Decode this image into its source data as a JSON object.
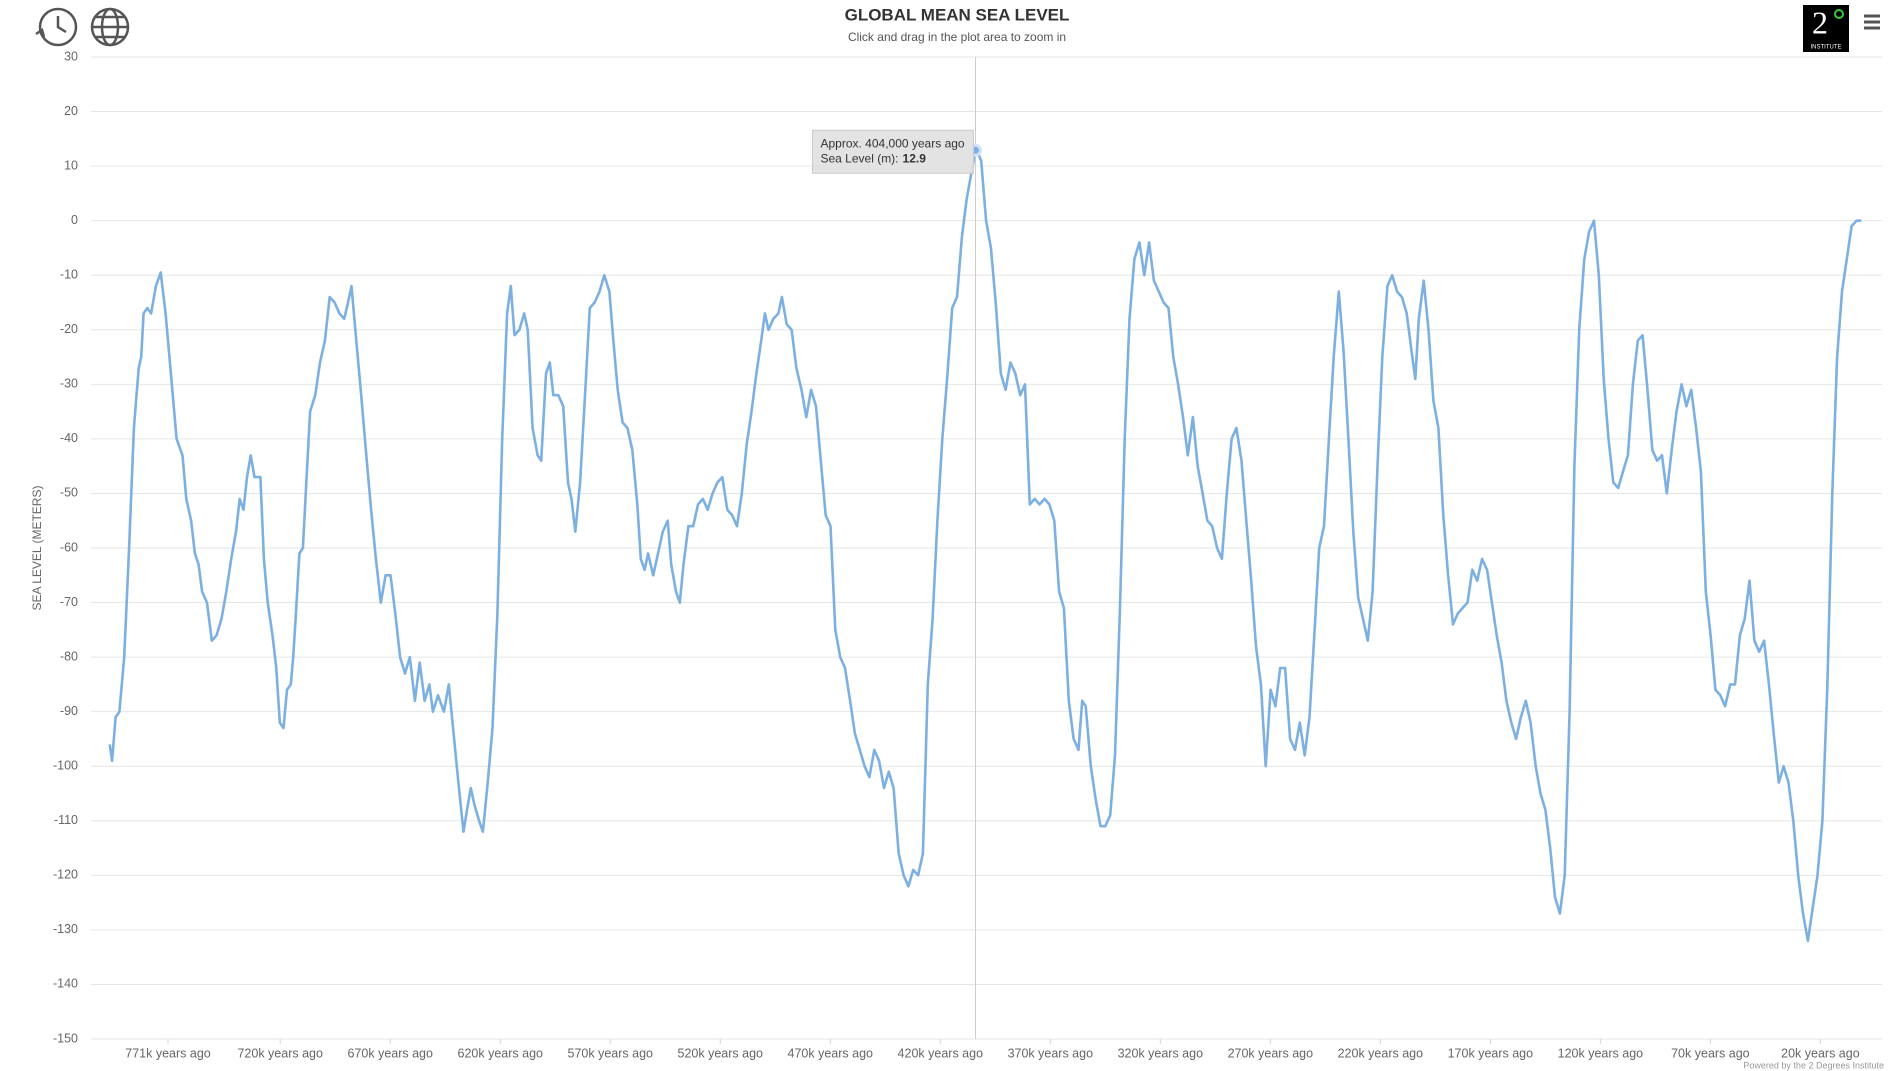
{
  "chart_data": {
    "type": "line",
    "title": "GLOBAL MEAN SEA LEVEL",
    "subtitle": "Click and drag in the plot area to zoom in",
    "y_label": "SEA LEVEL (METERS)",
    "credit": "Powered by the 2 Degrees Institute",
    "logo": {
      "big": "2",
      "small": "INSTITUTE"
    },
    "tooltip": {
      "title": "Approx. 404,000 years ago",
      "label": "Sea Level (m):"
    },
    "xlim": [
      806,
      -8
    ],
    "ylim": [
      -150,
      30
    ],
    "yticks": [
      -150,
      -140,
      -130,
      -120,
      -110,
      -100,
      -90,
      -80,
      -70,
      -60,
      -50,
      -40,
      -30,
      -20,
      -10,
      0,
      10,
      20,
      30
    ],
    "xticks": [
      {
        "value": 771,
        "label": "771k years ago"
      },
      {
        "value": 720,
        "label": "720k years ago"
      },
      {
        "value": 670,
        "label": "670k years ago"
      },
      {
        "value": 620,
        "label": "620k years ago"
      },
      {
        "value": 570,
        "label": "570k years ago"
      },
      {
        "value": 520,
        "label": "520k years ago"
      },
      {
        "value": 470,
        "label": "470k years ago"
      },
      {
        "value": 420,
        "label": "420k years ago"
      },
      {
        "value": 370,
        "label": "370k years ago"
      },
      {
        "value": 320,
        "label": "320k years ago"
      },
      {
        "value": 270,
        "label": "270k years ago"
      },
      {
        "value": 220,
        "label": "220k years ago"
      },
      {
        "value": 170,
        "label": "170k years ago"
      },
      {
        "value": 120,
        "label": "120k years ago"
      },
      {
        "value": 70,
        "label": "70k years ago"
      },
      {
        "value": 20,
        "label": "20k years ago"
      }
    ],
    "grid": true,
    "x": [
      797.5,
      796.4,
      794.8,
      793.1,
      790.9,
      788.7,
      786.5,
      784.3,
      783.2,
      782.1,
      780.4,
      778.7,
      776.5,
      774.3,
      772.1,
      769.9,
      767.1,
      764.4,
      762.7,
      760.5,
      758.8,
      757.1,
      755.5,
      753.3,
      751.1,
      748.9,
      746.7,
      744.5,
      742.3,
      740.1,
      738.4,
      736.7,
      735.1,
      733.4,
      731.7,
      729.0,
      727.4,
      725.7,
      723.5,
      721.8,
      720.2,
      718.5,
      716.9,
      715.2,
      714.1,
      713.0,
      711.3,
      709.7,
      708.0,
      706.4,
      704.1,
      701.9,
      699.7,
      697.5,
      695.3,
      693.1,
      690.9,
      689.2,
      687.6,
      685.4,
      683.2,
      680.9,
      678.7,
      676.5,
      674.3,
      672.1,
      669.9,
      667.7,
      665.5,
      663.3,
      661.1,
      658.8,
      656.6,
      654.4,
      652.2,
      650.6,
      648.3,
      645.6,
      643.4,
      641.2,
      639.0,
      636.7,
      635.1,
      633.4,
      631.8,
      629.6,
      627.9,
      625.7,
      623.5,
      621.3,
      619.1,
      616.9,
      615.2,
      613.5,
      611.3,
      609.1,
      607.5,
      605.3,
      603.0,
      601.4,
      599.2,
      597.5,
      595.9,
      593.6,
      591.4,
      589.2,
      587.6,
      585.9,
      583.7,
      581.5,
      579.3,
      577.1,
      574.9,
      572.7,
      570.4,
      568.8,
      566.6,
      564.4,
      562.2,
      560.0,
      557.7,
      556.1,
      554.4,
      552.8,
      550.5,
      548.3,
      546.1,
      543.9,
      542.3,
      540.1,
      538.4,
      536.7,
      534.5,
      532.3,
      530.1,
      527.9,
      525.7,
      523.5,
      521.3,
      519.1,
      516.8,
      514.6,
      512.4,
      510.2,
      508.0,
      505.8,
      503.6,
      501.4,
      499.7,
      498.1,
      495.9,
      493.6,
      492.0,
      489.8,
      487.6,
      485.4,
      483.1,
      480.9,
      478.7,
      476.5,
      474.3,
      472.1,
      469.9,
      467.7,
      465.5,
      463.3,
      461.0,
      458.8,
      456.6,
      454.4,
      452.2,
      450.0,
      447.8,
      445.6,
      443.4,
      441.2,
      438.9,
      436.7,
      434.5,
      432.3,
      430.1,
      427.9,
      425.7,
      423.5,
      421.3,
      419.1,
      416.9,
      414.6,
      412.4,
      410.2,
      408.0,
      404,
      402.5,
      401.4,
      399.2,
      397.0,
      394.8,
      392.5,
      390.3,
      388.1,
      385.9,
      383.7,
      381.5,
      379.3,
      377.1,
      374.9,
      372.6,
      370.4,
      368.2,
      366.0,
      363.8,
      361.6,
      359.4,
      357.2,
      355.5,
      353.9,
      351.6,
      349.4,
      347.2,
      345.0,
      342.8,
      340.6,
      338.4,
      336.2,
      334.0,
      331.8,
      329.5,
      327.3,
      325.1,
      322.9,
      320.7,
      318.5,
      316.3,
      314.1,
      311.9,
      309.7,
      307.5,
      305.2,
      303.0,
      300.8,
      298.6,
      296.4,
      294.2,
      292.0,
      289.8,
      287.6,
      285.4,
      283.1,
      280.9,
      278.7,
      276.5,
      274.3,
      272.1,
      269.9,
      267.7,
      265.5,
      263.3,
      261.0,
      258.8,
      256.6,
      254.4,
      252.2,
      250.0,
      247.8,
      245.6,
      243.4,
      241.2,
      238.9,
      236.7,
      234.5,
      232.3,
      230.1,
      227.9,
      225.7,
      223.5,
      221.3,
      219.1,
      216.8,
      214.6,
      212.4,
      210.2,
      208.0,
      205.8,
      204.1,
      202.5,
      200.3,
      198.1,
      195.9,
      193.6,
      191.4,
      189.2,
      187.0,
      184.8,
      182.6,
      180.4,
      178.2,
      176.0,
      173.8,
      171.5,
      169.3,
      167.1,
      164.9,
      162.7,
      160.5,
      158.3,
      156.1,
      153.9,
      151.7,
      149.4,
      147.2,
      145.0,
      142.8,
      140.6,
      138.4,
      136.2,
      134.0,
      131.8,
      129.6,
      127.3,
      125.1,
      122.9,
      120.7,
      118.5,
      116.3,
      114.1,
      111.9,
      109.7,
      107.5,
      105.2,
      103.0,
      100.8,
      98.6,
      96.4,
      94.2,
      92.0,
      89.8,
      87.6,
      85.4,
      83.1,
      80.9,
      78.7,
      76.5,
      74.3,
      72.1,
      69.9,
      67.7,
      65.5,
      63.3,
      61.0,
      58.8,
      56.6,
      54.4,
      52.2,
      50.0,
      47.8,
      45.6,
      43.4,
      41.2,
      38.9,
      36.7,
      34.5,
      32.3,
      30.1,
      27.9,
      25.7,
      23.5,
      21.3,
      19.1,
      16.8,
      14.6,
      12.4,
      10.2,
      8.0,
      5.8,
      3.6,
      1.4
    ],
    "series": [
      {
        "name": "Sea Level (m)",
        "color": "#7cb0e2",
        "values": [
          -96,
          -99,
          -91,
          -90,
          -80,
          -60,
          -38,
          -27,
          -25,
          -17,
          -16,
          -17,
          -12,
          -9.5,
          -17,
          -27,
          -40,
          -43,
          -51,
          -55,
          -61,
          -63,
          -68,
          -70,
          -77,
          -76,
          -73,
          -68,
          -62,
          -57,
          -51,
          -53,
          -47,
          -43,
          -47,
          -47,
          -62,
          -70,
          -76,
          -82,
          -92,
          -93,
          -86,
          -85,
          -80,
          -73,
          -61,
          -60,
          -47,
          -35,
          -32,
          -26,
          -22,
          -14,
          -15,
          -17,
          -18,
          -15,
          -12,
          -22,
          -32,
          -43,
          -53,
          -62,
          -70,
          -65,
          -65,
          -72,
          -80,
          -83,
          -80,
          -88,
          -81,
          -88,
          -85,
          -90,
          -87,
          -90,
          -85,
          -94,
          -103,
          -112,
          -108,
          -104,
          -107,
          -110,
          -112,
          -103,
          -93,
          -72,
          -40,
          -17,
          -12,
          -21,
          -20,
          -17,
          -20,
          -38,
          -43,
          -44,
          -28,
          -26,
          -32,
          -32,
          -34,
          -48,
          -51,
          -57,
          -48,
          -32,
          -16,
          -15,
          -13,
          -10,
          -13,
          -21,
          -31,
          -37,
          -38,
          -42,
          -52,
          -62,
          -64,
          -61,
          -65,
          -61,
          -57,
          -55,
          -63,
          -68,
          -70,
          -63,
          -56,
          -56,
          -52,
          -51,
          -53,
          -50,
          -48,
          -47,
          -53,
          -54,
          -56,
          -50,
          -41,
          -35,
          -28,
          -22,
          -17,
          -20,
          -18,
          -17,
          -14,
          -19,
          -20,
          -27,
          -31,
          -36,
          -31,
          -34,
          -44,
          -54,
          -56,
          -75,
          -80,
          -82,
          -88,
          -94,
          -97,
          -100,
          -102,
          -97,
          -99,
          -104,
          -101,
          -104,
          -116,
          -120,
          -122,
          -119,
          -120,
          -116,
          -85,
          -73,
          -55,
          -40,
          -29,
          -16,
          -14,
          -3,
          4,
          12.9,
          12,
          11,
          0,
          -5,
          -15,
          -28,
          -31,
          -26,
          -28,
          -32,
          -30,
          -52,
          -51,
          -52,
          -51,
          -52,
          -55,
          -68,
          -71,
          -88,
          -95,
          -97,
          -88,
          -89,
          -100,
          -106,
          -111,
          -111,
          -109,
          -98,
          -72,
          -40,
          -18,
          -7,
          -4,
          -10,
          -4,
          -11,
          -13,
          -15,
          -16,
          -25,
          -30,
          -36,
          -43,
          -36,
          -45,
          -50,
          -55,
          -56,
          -60,
          -62,
          -50,
          -40,
          -38,
          -44,
          -55,
          -66,
          -78,
          -85,
          -100,
          -86,
          -89,
          -82,
          -82,
          -95,
          -97,
          -92,
          -98,
          -91,
          -76,
          -60,
          -56,
          -40,
          -25,
          -13,
          -24,
          -40,
          -57,
          -69,
          -73,
          -77,
          -68,
          -45,
          -25,
          -12,
          -10,
          -13,
          -14,
          -17,
          -24,
          -29,
          -18,
          -11,
          -20,
          -33,
          -38,
          -54,
          -65,
          -74,
          -72,
          -71,
          -70,
          -64,
          -66,
          -62,
          -64,
          -70,
          -76,
          -81,
          -88,
          -92,
          -95,
          -91,
          -88,
          -92,
          -100,
          -105,
          -108,
          -115,
          -124,
          -127,
          -120,
          -90,
          -45,
          -20,
          -7,
          -2,
          0,
          -10,
          -29,
          -40,
          -48,
          -49,
          -46,
          -43,
          -30,
          -22,
          -21,
          -31,
          -42,
          -44,
          -43,
          -50,
          -42,
          -35,
          -30,
          -34,
          -31,
          -38,
          -46,
          -68,
          -76,
          -86,
          -87,
          -89,
          -85,
          -85,
          -76,
          -73,
          -66,
          -77,
          -79,
          -77,
          -85,
          -94,
          -103,
          -100,
          -103,
          -110,
          -120,
          -127,
          -132,
          -126,
          -120,
          -110,
          -85,
          -50,
          -25,
          -13,
          -7,
          -1,
          0,
          0
        ]
      }
    ]
  }
}
